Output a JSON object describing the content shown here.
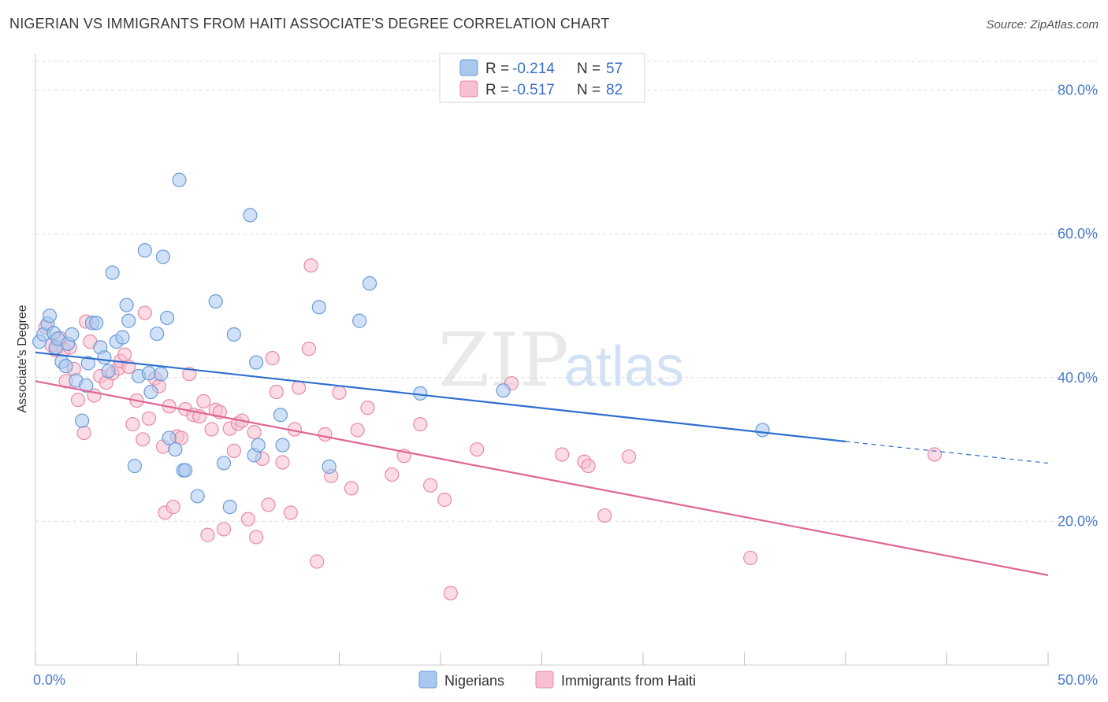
{
  "title": "NIGERIAN VS IMMIGRANTS FROM HAITI ASSOCIATE'S DEGREE CORRELATION CHART",
  "source": "Source: ZipAtlas.com",
  "watermark": {
    "zip": "ZIP",
    "atlas": "atlas"
  },
  "colors": {
    "nigerians_fill": "#a9c8f0",
    "nigerians_stroke": "#6a9bd8",
    "nigerians_line": "#2e6fce",
    "haiti_fill": "#f7c0d0",
    "haiti_stroke": "#e889a8",
    "haiti_line": "#e06592",
    "axis_text": "#4a7cc7",
    "grid": "#dddddd"
  },
  "legend": {
    "r_label": "R =",
    "n_label": "N =",
    "series": [
      {
        "name": "Nigerians",
        "r": "-0.214",
        "n": "57"
      },
      {
        "name": "Immigrants from Haiti",
        "r": "-0.517",
        "n": "82"
      }
    ]
  },
  "chart_data": {
    "type": "scatter",
    "title": "NIGERIAN VS IMMIGRANTS FROM HAITI ASSOCIATE'S DEGREE CORRELATION CHART",
    "xlabel": "",
    "ylabel": "Associate's Degree",
    "xlim": [
      0,
      50
    ],
    "ylim": [
      0,
      84
    ],
    "x_tick_labels": [
      "0.0%",
      "50.0%"
    ],
    "y_ticks": [
      20,
      40,
      60,
      80
    ],
    "y_tick_labels": [
      "20.0%",
      "40.0%",
      "60.0%",
      "80.0%"
    ],
    "grid": true,
    "legend_position": "top-center",
    "series": [
      {
        "name": "Nigerians",
        "trend": {
          "x": [
            0,
            40
          ],
          "y": [
            43.5,
            31.1
          ],
          "dashed_to": [
            50,
            28.1
          ]
        },
        "points": [
          [
            0.2,
            45.0
          ],
          [
            0.4,
            46.0
          ],
          [
            0.6,
            47.5
          ],
          [
            0.7,
            48.6
          ],
          [
            0.9,
            46.2
          ],
          [
            1.0,
            44.2
          ],
          [
            1.1,
            45.4
          ],
          [
            1.3,
            42.2
          ],
          [
            1.5,
            41.6
          ],
          [
            1.6,
            44.7
          ],
          [
            1.8,
            46.0
          ],
          [
            2.0,
            39.6
          ],
          [
            2.3,
            34.0
          ],
          [
            2.5,
            38.9
          ],
          [
            2.6,
            42.0
          ],
          [
            2.8,
            47.6
          ],
          [
            3.0,
            47.6
          ],
          [
            3.2,
            44.2
          ],
          [
            3.4,
            42.8
          ],
          [
            3.6,
            40.9
          ],
          [
            3.8,
            54.6
          ],
          [
            4.0,
            45.0
          ],
          [
            4.3,
            45.6
          ],
          [
            4.5,
            50.1
          ],
          [
            4.6,
            47.9
          ],
          [
            4.9,
            27.7
          ],
          [
            5.1,
            40.2
          ],
          [
            5.4,
            57.7
          ],
          [
            5.6,
            40.6
          ],
          [
            5.7,
            38.0
          ],
          [
            6.0,
            46.1
          ],
          [
            6.2,
            40.5
          ],
          [
            6.3,
            56.8
          ],
          [
            6.5,
            48.3
          ],
          [
            6.6,
            31.6
          ],
          [
            6.9,
            30.0
          ],
          [
            7.1,
            67.5
          ],
          [
            7.3,
            27.1
          ],
          [
            7.4,
            27.1
          ],
          [
            8.0,
            23.5
          ],
          [
            8.9,
            50.6
          ],
          [
            9.3,
            28.1
          ],
          [
            9.6,
            22.0
          ],
          [
            9.8,
            46.0
          ],
          [
            10.6,
            62.6
          ],
          [
            10.9,
            42.1
          ],
          [
            10.8,
            29.2
          ],
          [
            11.0,
            30.6
          ],
          [
            12.1,
            34.8
          ],
          [
            12.2,
            30.6
          ],
          [
            14.0,
            49.8
          ],
          [
            14.5,
            27.6
          ],
          [
            16.0,
            47.9
          ],
          [
            16.5,
            53.1
          ],
          [
            19.0,
            37.8
          ],
          [
            23.1,
            38.2
          ],
          [
            35.9,
            32.7
          ]
        ]
      },
      {
        "name": "Immigrants from Haiti",
        "trend": {
          "x": [
            0,
            50
          ],
          "y": [
            39.5,
            12.5
          ]
        },
        "points": [
          [
            0.5,
            47.0
          ],
          [
            0.8,
            44.5
          ],
          [
            1.0,
            43.8
          ],
          [
            1.2,
            45.5
          ],
          [
            1.4,
            43.9
          ],
          [
            1.5,
            39.5
          ],
          [
            1.7,
            44.2
          ],
          [
            1.9,
            41.2
          ],
          [
            2.1,
            36.9
          ],
          [
            2.4,
            32.3
          ],
          [
            2.5,
            47.8
          ],
          [
            2.7,
            45.0
          ],
          [
            2.9,
            37.5
          ],
          [
            3.2,
            40.2
          ],
          [
            3.5,
            39.3
          ],
          [
            3.8,
            40.6
          ],
          [
            4.1,
            41.3
          ],
          [
            4.2,
            42.3
          ],
          [
            4.4,
            43.2
          ],
          [
            4.6,
            41.5
          ],
          [
            4.8,
            33.5
          ],
          [
            5.0,
            36.8
          ],
          [
            5.3,
            31.4
          ],
          [
            5.4,
            49.0
          ],
          [
            5.6,
            34.3
          ],
          [
            5.9,
            39.9
          ],
          [
            6.1,
            38.8
          ],
          [
            6.3,
            30.4
          ],
          [
            6.4,
            21.2
          ],
          [
            6.6,
            36.0
          ],
          [
            6.8,
            22.0
          ],
          [
            7.0,
            31.8
          ],
          [
            7.2,
            31.6
          ],
          [
            7.4,
            35.6
          ],
          [
            7.6,
            40.5
          ],
          [
            7.8,
            34.8
          ],
          [
            8.1,
            34.6
          ],
          [
            8.3,
            36.7
          ],
          [
            8.5,
            18.1
          ],
          [
            8.7,
            32.8
          ],
          [
            8.9,
            35.5
          ],
          [
            9.1,
            35.2
          ],
          [
            9.3,
            18.9
          ],
          [
            9.6,
            32.9
          ],
          [
            9.8,
            29.8
          ],
          [
            10.0,
            33.6
          ],
          [
            10.2,
            34.0
          ],
          [
            10.5,
            20.3
          ],
          [
            10.8,
            32.4
          ],
          [
            10.9,
            17.8
          ],
          [
            11.2,
            28.7
          ],
          [
            11.5,
            22.3
          ],
          [
            11.7,
            42.7
          ],
          [
            11.9,
            38.0
          ],
          [
            12.2,
            28.2
          ],
          [
            12.6,
            21.2
          ],
          [
            12.8,
            32.8
          ],
          [
            13.0,
            38.6
          ],
          [
            13.5,
            44.0
          ],
          [
            13.6,
            55.6
          ],
          [
            13.9,
            14.4
          ],
          [
            14.3,
            32.1
          ],
          [
            14.6,
            26.3
          ],
          [
            15.0,
            37.9
          ],
          [
            15.6,
            24.6
          ],
          [
            15.9,
            32.7
          ],
          [
            16.4,
            35.8
          ],
          [
            17.6,
            26.5
          ],
          [
            18.2,
            29.1
          ],
          [
            19.0,
            33.5
          ],
          [
            19.5,
            25.0
          ],
          [
            20.2,
            23.0
          ],
          [
            20.5,
            10.0
          ],
          [
            21.8,
            30.0
          ],
          [
            23.5,
            39.2
          ],
          [
            26.0,
            29.3
          ],
          [
            27.1,
            28.3
          ],
          [
            27.3,
            27.7
          ],
          [
            28.1,
            20.8
          ],
          [
            29.3,
            29.0
          ],
          [
            35.3,
            14.9
          ],
          [
            44.4,
            29.3
          ]
        ]
      }
    ]
  },
  "bottom_legend": [
    "Nigerians",
    "Immigrants from Haiti"
  ]
}
